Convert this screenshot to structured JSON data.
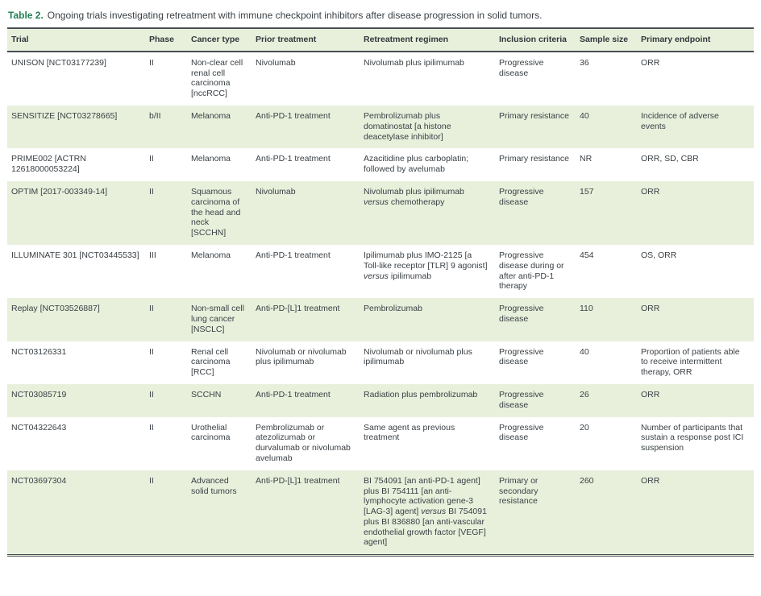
{
  "caption": {
    "label": "Table 2.",
    "text": "Ongoing trials investigating retreatment with immune checkpoint inhibitors after disease progression in solid tumors."
  },
  "colors": {
    "caption_green": "#1F7F52",
    "stripe_bg": "#E8F0DC",
    "rule_dark": "#484E51",
    "text_color": "#3A4045"
  },
  "table": {
    "columns": [
      {
        "key": "trial",
        "label": "Trial"
      },
      {
        "key": "phase",
        "label": "Phase"
      },
      {
        "key": "cancer_type",
        "label": "Cancer type"
      },
      {
        "key": "prior_treatment",
        "label": "Prior treatment"
      },
      {
        "key": "regimen",
        "label": "Retreatment regimen"
      },
      {
        "key": "inclusion",
        "label": "Inclusion criteria"
      },
      {
        "key": "sample_size",
        "label": "Sample size"
      },
      {
        "key": "endpoint",
        "label": "Primary endpoint"
      }
    ],
    "rows": [
      {
        "trial": "UNISON [NCT03177239]",
        "phase": "II",
        "cancer_type": "Non-clear cell renal cell carcinoma [nccRCC]",
        "prior_treatment": "Nivolumab",
        "regimen": [
          {
            "t": "Nivolumab plus ipilimumab"
          }
        ],
        "inclusion": "Progressive disease",
        "sample_size": "36",
        "endpoint": "ORR"
      },
      {
        "trial": "SENSITIZE [NCT03278665]",
        "phase": "b/II",
        "cancer_type": "Melanoma",
        "prior_treatment": "Anti-PD-1 treatment",
        "regimen": [
          {
            "t": "Pembrolizumab plus domatinostat [a histone deacetylase inhibitor]"
          }
        ],
        "inclusion": "Primary resistance",
        "sample_size": "40",
        "endpoint": "Incidence of adverse events"
      },
      {
        "trial": "PRIME002 [ACTRN 12618000053224]",
        "phase": "II",
        "cancer_type": "Melanoma",
        "prior_treatment": "Anti-PD-1 treatment",
        "regimen": [
          {
            "t": "Azacitidine plus carboplatin; followed by avelumab"
          }
        ],
        "inclusion": "Primary resistance",
        "sample_size": "NR",
        "endpoint": "ORR, SD, CBR"
      },
      {
        "trial": "OPTIM [2017-003349-14]",
        "phase": "II",
        "cancer_type": "Squamous carcinoma of the head and neck [SCCHN]",
        "prior_treatment": "Nivolumab",
        "regimen": [
          {
            "t": "Nivolumab plus ipilimumab "
          },
          {
            "t": "versus",
            "i": true
          },
          {
            "t": " chemotherapy"
          }
        ],
        "inclusion": "Progressive disease",
        "sample_size": "157",
        "endpoint": "ORR"
      },
      {
        "trial": "ILLUMINATE 301 [NCT03445533]",
        "phase": "III",
        "cancer_type": "Melanoma",
        "prior_treatment": "Anti-PD-1 treatment",
        "regimen": [
          {
            "t": "Ipilimumab plus IMO-2125 [a Toll-like receptor [TLR] 9 agonist] "
          },
          {
            "t": "versus",
            "i": true
          },
          {
            "t": " ipilimumab"
          }
        ],
        "inclusion": "Progressive disease during or after anti-PD-1 therapy",
        "sample_size": "454",
        "endpoint": "OS, ORR"
      },
      {
        "trial": "Replay [NCT03526887]",
        "phase": "II",
        "cancer_type": "Non-small cell lung cancer [NSCLC]",
        "prior_treatment": "Anti-PD-[L]1 treatment",
        "regimen": [
          {
            "t": "Pembrolizumab"
          }
        ],
        "inclusion": "Progressive disease",
        "sample_size": "110",
        "endpoint": "ORR"
      },
      {
        "trial": "NCT03126331",
        "phase": "II",
        "cancer_type": "Renal cell carcinoma [RCC]",
        "prior_treatment": "Nivolumab or nivolumab plus ipilimumab",
        "regimen": [
          {
            "t": "Nivolumab or nivolumab plus ipilimumab"
          }
        ],
        "inclusion": "Progressive disease",
        "sample_size": "40",
        "endpoint": "Proportion of patients able to receive intermittent therapy, ORR"
      },
      {
        "trial": "NCT03085719",
        "phase": "II",
        "cancer_type": "SCCHN",
        "prior_treatment": "Anti-PD-1 treatment",
        "regimen": [
          {
            "t": "Radiation plus pembrolizumab"
          }
        ],
        "inclusion": "Progressive disease",
        "sample_size": "26",
        "endpoint": "ORR"
      },
      {
        "trial": "NCT04322643",
        "phase": "II",
        "cancer_type": "Urothelial carcinoma",
        "prior_treatment": "Pembrolizumab or atezolizumab or durvalumab or nivolumab avelumab",
        "regimen": [
          {
            "t": "Same agent as previous treatment"
          }
        ],
        "inclusion": "Progressive disease",
        "sample_size": "20",
        "endpoint": "Number of participants that sustain a response post ICI suspension"
      },
      {
        "trial": "NCT03697304",
        "phase": "II",
        "cancer_type": "Advanced solid tumors",
        "prior_treatment": "Anti-PD-[L]1 treatment",
        "regimen": [
          {
            "t": "BI 754091 [an anti-PD-1 agent] plus BI 754111 [an anti-lymphocyte activation gene-3 [LAG-3] agent] "
          },
          {
            "t": "versus",
            "i": true
          },
          {
            "t": " BI 754091 plus BI 836880 [an anti-vascular endothelial growth factor [VEGF] agent]"
          }
        ],
        "inclusion": "Primary or secondary resistance",
        "sample_size": "260",
        "endpoint": "ORR"
      }
    ]
  }
}
